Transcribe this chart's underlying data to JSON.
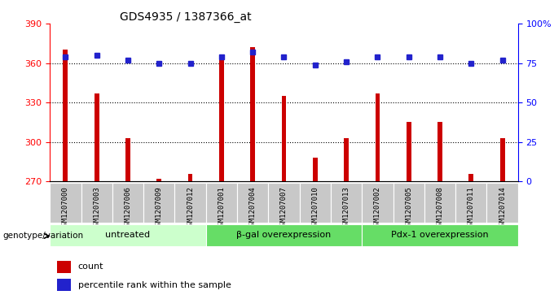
{
  "title": "GDS4935 / 1387366_at",
  "samples": [
    "GSM1207000",
    "GSM1207003",
    "GSM1207006",
    "GSM1207009",
    "GSM1207012",
    "GSM1207001",
    "GSM1207004",
    "GSM1207007",
    "GSM1207010",
    "GSM1207013",
    "GSM1207002",
    "GSM1207005",
    "GSM1207008",
    "GSM1207011",
    "GSM1207014"
  ],
  "counts": [
    370,
    337,
    303,
    272,
    276,
    366,
    372,
    335,
    288,
    303,
    337,
    315,
    315,
    276,
    303
  ],
  "percentiles": [
    79,
    80,
    77,
    75,
    75,
    79,
    82,
    79,
    74,
    76,
    79,
    79,
    79,
    75,
    77
  ],
  "ylim_left": [
    270,
    390
  ],
  "ylim_right": [
    0,
    100
  ],
  "yticks_left": [
    270,
    300,
    330,
    360,
    390
  ],
  "yticks_right": [
    0,
    25,
    50,
    75,
    100
  ],
  "bar_color": "#cc0000",
  "dot_color": "#2222cc",
  "bar_width": 0.15,
  "groups": [
    {
      "label": "untreated",
      "start": 0,
      "end": 5,
      "color": "#ccffcc"
    },
    {
      "label": "β-gal overexpression",
      "start": 5,
      "end": 10,
      "color": "#66dd66"
    },
    {
      "label": "Pdx-1 overexpression",
      "start": 10,
      "end": 15,
      "color": "#66dd66"
    }
  ],
  "group_label": "genotype/variation",
  "legend_count_label": "count",
  "legend_percentile_label": "percentile rank within the sample",
  "tick_bg_color": "#c8c8c8",
  "plot_bg_color": "#ffffff"
}
